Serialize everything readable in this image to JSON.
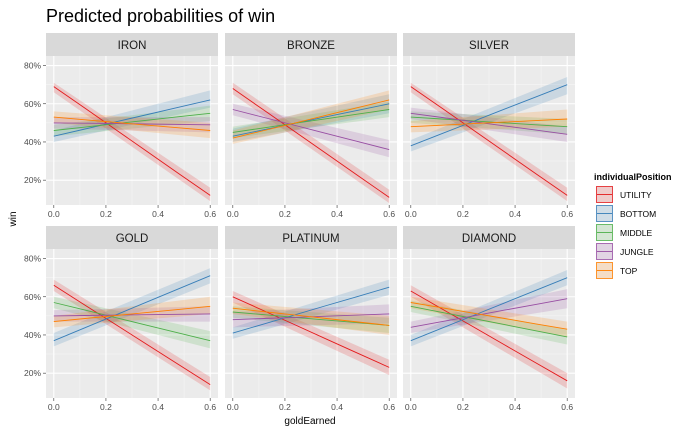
{
  "chart_data": {
    "type": "line",
    "title": "Predicted probabilities of win",
    "xlabel": "goldEarned",
    "ylabel": "win",
    "x_ticks": [
      0.0,
      0.2,
      0.4,
      0.6
    ],
    "x_tick_labels": [
      "0.0",
      "0.2",
      "0.4",
      "0.6"
    ],
    "y_ticks": [
      0.2,
      0.4,
      0.6,
      0.8
    ],
    "y_tick_labels": [
      "20%",
      "40%",
      "60%",
      "80%"
    ],
    "xlim": [
      -0.03,
      0.63
    ],
    "ylim": [
      0.07,
      0.85
    ],
    "grid": true,
    "legend": {
      "title": "individualPosition",
      "position": "right",
      "entries": [
        "UTILITY",
        "BOTTOM",
        "MIDDLE",
        "JUNGLE",
        "TOP"
      ]
    },
    "colors": {
      "UTILITY": "#E41A1C",
      "BOTTOM": "#377EB8",
      "MIDDLE": "#4DAF4A",
      "JUNGLE": "#984EA3",
      "TOP": "#FF7F00"
    },
    "panels": [
      {
        "name": "IRON",
        "series": [
          {
            "name": "UTILITY",
            "x": [
              0,
              0.6
            ],
            "y": [
              0.69,
              0.12
            ],
            "ci": [
              [
                0.71,
                0.66
              ],
              [
                0.16,
                0.09
              ]
            ]
          },
          {
            "name": "BOTTOM",
            "x": [
              0,
              0.6
            ],
            "y": [
              0.43,
              0.62
            ],
            "ci": [
              [
                0.46,
                0.4
              ],
              [
                0.67,
                0.58
              ]
            ]
          },
          {
            "name": "MIDDLE",
            "x": [
              0,
              0.6
            ],
            "y": [
              0.46,
              0.55
            ],
            "ci": [
              [
                0.49,
                0.43
              ],
              [
                0.59,
                0.51
              ]
            ]
          },
          {
            "name": "JUNGLE",
            "x": [
              0,
              0.6
            ],
            "y": [
              0.5,
              0.49
            ],
            "ci": [
              [
                0.53,
                0.47
              ],
              [
                0.53,
                0.45
              ]
            ]
          },
          {
            "name": "TOP",
            "x": [
              0,
              0.6
            ],
            "y": [
              0.53,
              0.46
            ],
            "ci": [
              [
                0.56,
                0.5
              ],
              [
                0.5,
                0.42
              ]
            ]
          }
        ]
      },
      {
        "name": "BRONZE",
        "series": [
          {
            "name": "UTILITY",
            "x": [
              0,
              0.6
            ],
            "y": [
              0.68,
              0.11
            ],
            "ci": [
              [
                0.71,
                0.65
              ],
              [
                0.15,
                0.08
              ]
            ]
          },
          {
            "name": "BOTTOM",
            "x": [
              0,
              0.6
            ],
            "y": [
              0.43,
              0.6
            ],
            "ci": [
              [
                0.47,
                0.4
              ],
              [
                0.65,
                0.55
              ]
            ]
          },
          {
            "name": "MIDDLE",
            "x": [
              0,
              0.6
            ],
            "y": [
              0.45,
              0.57
            ],
            "ci": [
              [
                0.48,
                0.42
              ],
              [
                0.61,
                0.53
              ]
            ]
          },
          {
            "name": "JUNGLE",
            "x": [
              0,
              0.6
            ],
            "y": [
              0.57,
              0.36
            ],
            "ci": [
              [
                0.6,
                0.54
              ],
              [
                0.41,
                0.32
              ]
            ]
          },
          {
            "name": "TOP",
            "x": [
              0,
              0.6
            ],
            "y": [
              0.42,
              0.62
            ],
            "ci": [
              [
                0.46,
                0.39
              ],
              [
                0.67,
                0.57
              ]
            ]
          }
        ]
      },
      {
        "name": "SILVER",
        "series": [
          {
            "name": "UTILITY",
            "x": [
              0,
              0.6
            ],
            "y": [
              0.69,
              0.12
            ],
            "ci": [
              [
                0.71,
                0.66
              ],
              [
                0.16,
                0.09
              ]
            ]
          },
          {
            "name": "BOTTOM",
            "x": [
              0,
              0.6
            ],
            "y": [
              0.38,
              0.7
            ],
            "ci": [
              [
                0.41,
                0.35
              ],
              [
                0.74,
                0.65
              ]
            ]
          },
          {
            "name": "MIDDLE",
            "x": [
              0,
              0.6
            ],
            "y": [
              0.53,
              0.48
            ],
            "ci": [
              [
                0.56,
                0.5
              ],
              [
                0.52,
                0.44
              ]
            ]
          },
          {
            "name": "JUNGLE",
            "x": [
              0,
              0.6
            ],
            "y": [
              0.55,
              0.44
            ],
            "ci": [
              [
                0.58,
                0.52
              ],
              [
                0.48,
                0.4
              ]
            ]
          },
          {
            "name": "TOP",
            "x": [
              0,
              0.6
            ],
            "y": [
              0.48,
              0.52
            ],
            "ci": [
              [
                0.51,
                0.45
              ],
              [
                0.57,
                0.48
              ]
            ]
          }
        ]
      },
      {
        "name": "GOLD",
        "series": [
          {
            "name": "UTILITY",
            "x": [
              0,
              0.6
            ],
            "y": [
              0.66,
              0.14
            ],
            "ci": [
              [
                0.69,
                0.63
              ],
              [
                0.18,
                0.11
              ]
            ]
          },
          {
            "name": "BOTTOM",
            "x": [
              0,
              0.6
            ],
            "y": [
              0.37,
              0.71
            ],
            "ci": [
              [
                0.41,
                0.34
              ],
              [
                0.75,
                0.67
              ]
            ]
          },
          {
            "name": "MIDDLE",
            "x": [
              0,
              0.6
            ],
            "y": [
              0.57,
              0.37
            ],
            "ci": [
              [
                0.6,
                0.54
              ],
              [
                0.42,
                0.33
              ]
            ]
          },
          {
            "name": "JUNGLE",
            "x": [
              0,
              0.6
            ],
            "y": [
              0.5,
              0.51
            ],
            "ci": [
              [
                0.53,
                0.47
              ],
              [
                0.55,
                0.47
              ]
            ]
          },
          {
            "name": "TOP",
            "x": [
              0,
              0.6
            ],
            "y": [
              0.47,
              0.55
            ],
            "ci": [
              [
                0.5,
                0.44
              ],
              [
                0.6,
                0.51
              ]
            ]
          }
        ]
      },
      {
        "name": "PLATINUM",
        "series": [
          {
            "name": "UTILITY",
            "x": [
              0,
              0.6
            ],
            "y": [
              0.6,
              0.23
            ],
            "ci": [
              [
                0.63,
                0.57
              ],
              [
                0.27,
                0.19
              ]
            ]
          },
          {
            "name": "BOTTOM",
            "x": [
              0,
              0.6
            ],
            "y": [
              0.41,
              0.65
            ],
            "ci": [
              [
                0.44,
                0.38
              ],
              [
                0.69,
                0.61
              ]
            ]
          },
          {
            "name": "MIDDLE",
            "x": [
              0,
              0.6
            ],
            "y": [
              0.52,
              0.45
            ],
            "ci": [
              [
                0.55,
                0.49
              ],
              [
                0.49,
                0.41
              ]
            ]
          },
          {
            "name": "JUNGLE",
            "x": [
              0,
              0.6
            ],
            "y": [
              0.48,
              0.51
            ],
            "ci": [
              [
                0.52,
                0.44
              ],
              [
                0.56,
                0.46
              ]
            ]
          },
          {
            "name": "TOP",
            "x": [
              0,
              0.6
            ],
            "y": [
              0.54,
              0.45
            ],
            "ci": [
              [
                0.57,
                0.51
              ],
              [
                0.5,
                0.4
              ]
            ]
          }
        ]
      },
      {
        "name": "DIAMOND",
        "series": [
          {
            "name": "UTILITY",
            "x": [
              0,
              0.6
            ],
            "y": [
              0.63,
              0.16
            ],
            "ci": [
              [
                0.66,
                0.6
              ],
              [
                0.2,
                0.12
              ]
            ]
          },
          {
            "name": "BOTTOM",
            "x": [
              0,
              0.6
            ],
            "y": [
              0.37,
              0.7
            ],
            "ci": [
              [
                0.4,
                0.34
              ],
              [
                0.74,
                0.66
              ]
            ]
          },
          {
            "name": "MIDDLE",
            "x": [
              0,
              0.6
            ],
            "y": [
              0.55,
              0.39
            ],
            "ci": [
              [
                0.58,
                0.52
              ],
              [
                0.43,
                0.35
              ]
            ]
          },
          {
            "name": "JUNGLE",
            "x": [
              0,
              0.6
            ],
            "y": [
              0.44,
              0.59
            ],
            "ci": [
              [
                0.47,
                0.41
              ],
              [
                0.64,
                0.54
              ]
            ]
          },
          {
            "name": "TOP",
            "x": [
              0,
              0.6
            ],
            "y": [
              0.57,
              0.43
            ],
            "ci": [
              [
                0.6,
                0.54
              ],
              [
                0.47,
                0.39
              ]
            ]
          }
        ]
      }
    ]
  }
}
